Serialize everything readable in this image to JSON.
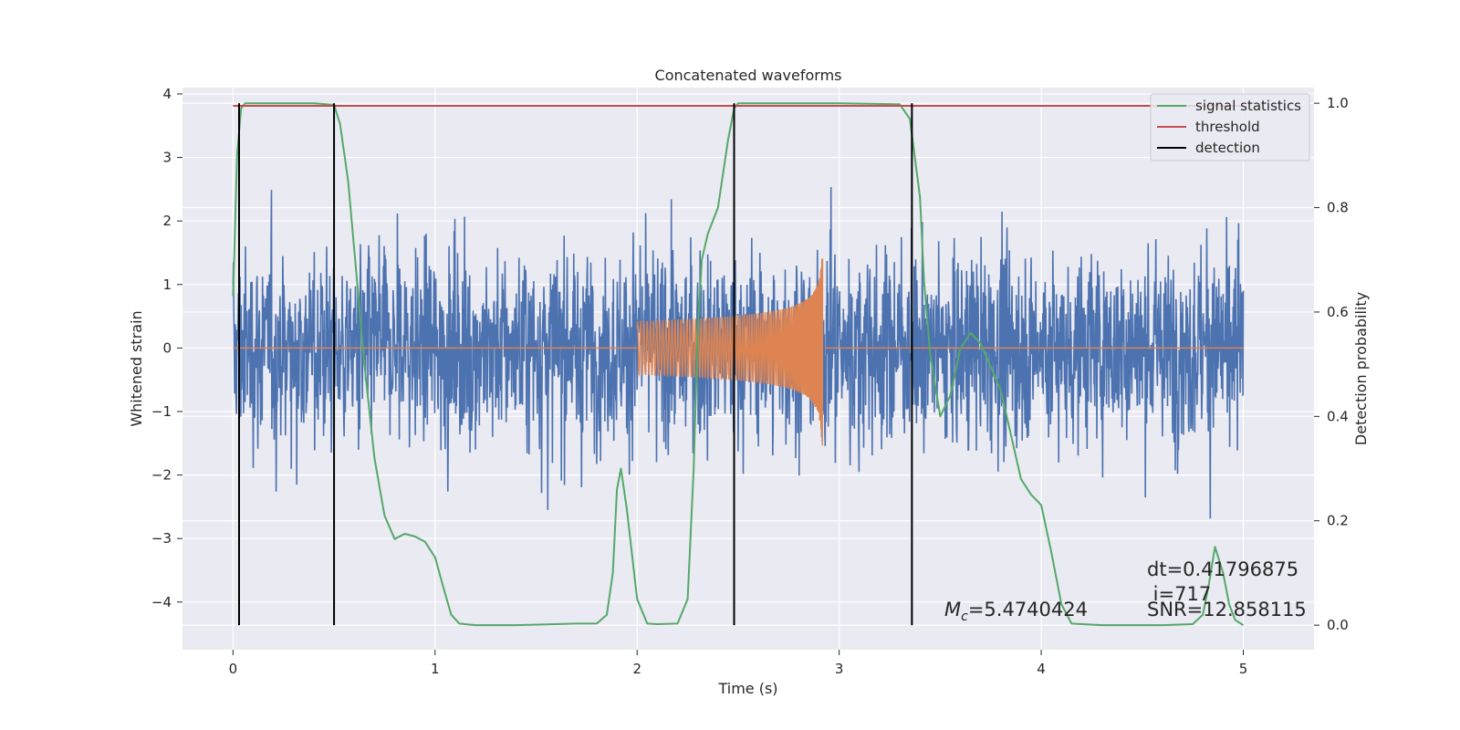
{
  "chart_data": {
    "type": "line",
    "title": "Concatenated waveforms",
    "xlabel": "Time (s)",
    "ylabel": "Whitened strain",
    "y2label": "Detection probability",
    "xlim": [
      -0.25,
      5.35
    ],
    "ylim": [
      -4.75,
      4.1
    ],
    "y2lim": [
      -0.047,
      1.03
    ],
    "x_ticks": [
      0,
      1,
      2,
      3,
      4,
      5
    ],
    "x_tick_labels": [
      "0",
      "1",
      "2",
      "3",
      "4",
      "5"
    ],
    "y_ticks": [
      4,
      3,
      2,
      1,
      0,
      -1,
      -2,
      -3,
      -4
    ],
    "y_tick_labels": [
      "4",
      "3",
      "2",
      "1",
      "0",
      "−1",
      "−2",
      "−3",
      "−4"
    ],
    "y2_ticks": [
      1.0,
      0.8,
      0.6,
      0.4,
      0.2,
      0.0
    ],
    "y2_tick_labels": [
      "1.0",
      "0.8",
      "0.6",
      "0.4",
      "0.2",
      "0.0"
    ],
    "grid": true,
    "legend_position": "top-right",
    "colors": {
      "background": "#eaeaf2",
      "grid": "#ffffff",
      "strain": "#4c72b0",
      "template": "#dd8452",
      "signal_statistics": "#55a868",
      "threshold": "#c44e52",
      "detection": "#000000"
    },
    "series": [
      {
        "name": "signal statistics",
        "axis": "right",
        "x": [
          0,
          0.02,
          0.04,
          0.06,
          0.1,
          0.2,
          0.3,
          0.4,
          0.5,
          0.53,
          0.57,
          0.6,
          0.65,
          0.7,
          0.75,
          0.8,
          0.85,
          0.9,
          0.95,
          1.0,
          1.05,
          1.08,
          1.12,
          1.2,
          1.4,
          1.6,
          1.7,
          1.8,
          1.85,
          1.88,
          1.9,
          1.92,
          1.95,
          2.0,
          2.05,
          2.1,
          2.2,
          2.25,
          2.28,
          2.3,
          2.32,
          2.35,
          2.4,
          2.45,
          2.48,
          2.5,
          2.55,
          2.6,
          3.0,
          3.3,
          3.35,
          3.4,
          3.42,
          3.45,
          3.5,
          3.55,
          3.6,
          3.65,
          3.7,
          3.8,
          3.9,
          3.95,
          4.0,
          4.05,
          4.1,
          4.15,
          4.3,
          4.6,
          4.75,
          4.8,
          4.83,
          4.86,
          4.9,
          4.93,
          4.96,
          5.0
        ],
        "y": [
          0.63,
          0.9,
          0.99,
          1.0,
          1.0,
          1.0,
          1.0,
          1.0,
          0.997,
          0.96,
          0.85,
          0.72,
          0.5,
          0.32,
          0.21,
          0.165,
          0.175,
          0.17,
          0.16,
          0.13,
          0.06,
          0.02,
          0.003,
          0.0,
          0.0,
          0.002,
          0.003,
          0.003,
          0.02,
          0.1,
          0.26,
          0.3,
          0.22,
          0.05,
          0.003,
          0.002,
          0.003,
          0.05,
          0.3,
          0.56,
          0.7,
          0.75,
          0.8,
          0.93,
          0.99,
          1.0,
          1.0,
          1.0,
          1.0,
          0.998,
          0.97,
          0.82,
          0.66,
          0.52,
          0.4,
          0.44,
          0.53,
          0.56,
          0.54,
          0.45,
          0.28,
          0.25,
          0.23,
          0.14,
          0.04,
          0.003,
          0.0,
          0.0,
          0.002,
          0.02,
          0.08,
          0.15,
          0.1,
          0.04,
          0.01,
          0.0
        ]
      },
      {
        "name": "threshold",
        "axis": "right",
        "x": [
          0,
          5
        ],
        "y": [
          0.995,
          0.995
        ]
      },
      {
        "name": "detection",
        "axis": "right",
        "x": [
          0.03,
          0.5,
          2.48,
          3.36
        ],
        "y_range": [
          0.0,
          1.0
        ]
      }
    ],
    "legend": [
      {
        "label": "signal statistics",
        "color": "#55a868"
      },
      {
        "label": "threshold",
        "color": "#c44e52"
      },
      {
        "label": "detection",
        "color": "#000000"
      }
    ],
    "annotations": {
      "mc": {
        "math": "M",
        "sub": "c",
        "rest": "=5.4740424"
      },
      "dt": "dt=0.41796875",
      "i": " i=717",
      "snr": "SNR=12.858115"
    }
  }
}
